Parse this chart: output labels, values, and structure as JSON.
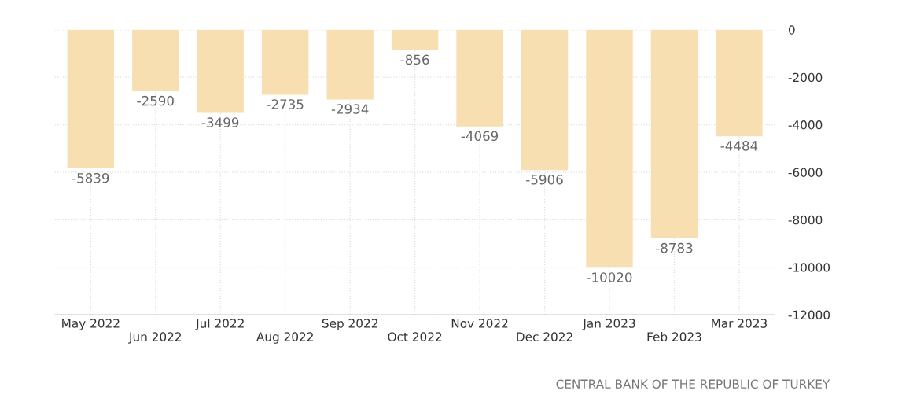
{
  "chart_data": {
    "type": "bar",
    "categories": [
      "May 2022",
      "Jun 2022",
      "Jul 2022",
      "Aug 2022",
      "Sep 2022",
      "Oct 2022",
      "Nov 2022",
      "Dec 2022",
      "Jan 2023",
      "Feb 2023",
      "Mar 2023"
    ],
    "values": [
      -5839,
      -2590,
      -3499,
      -2735,
      -2934,
      -856,
      -4069,
      -5906,
      -10020,
      -8783,
      -4484
    ],
    "color": "#f7dfb1",
    "data_labels": true,
    "ylim": [
      -12000,
      0
    ],
    "yticks": [
      0,
      -2000,
      -4000,
      -6000,
      -8000,
      -10000,
      -12000
    ],
    "grid": true,
    "annotations": [
      "CENTRAL BANK OF THE REPUBLIC OF TURKEY"
    ]
  }
}
